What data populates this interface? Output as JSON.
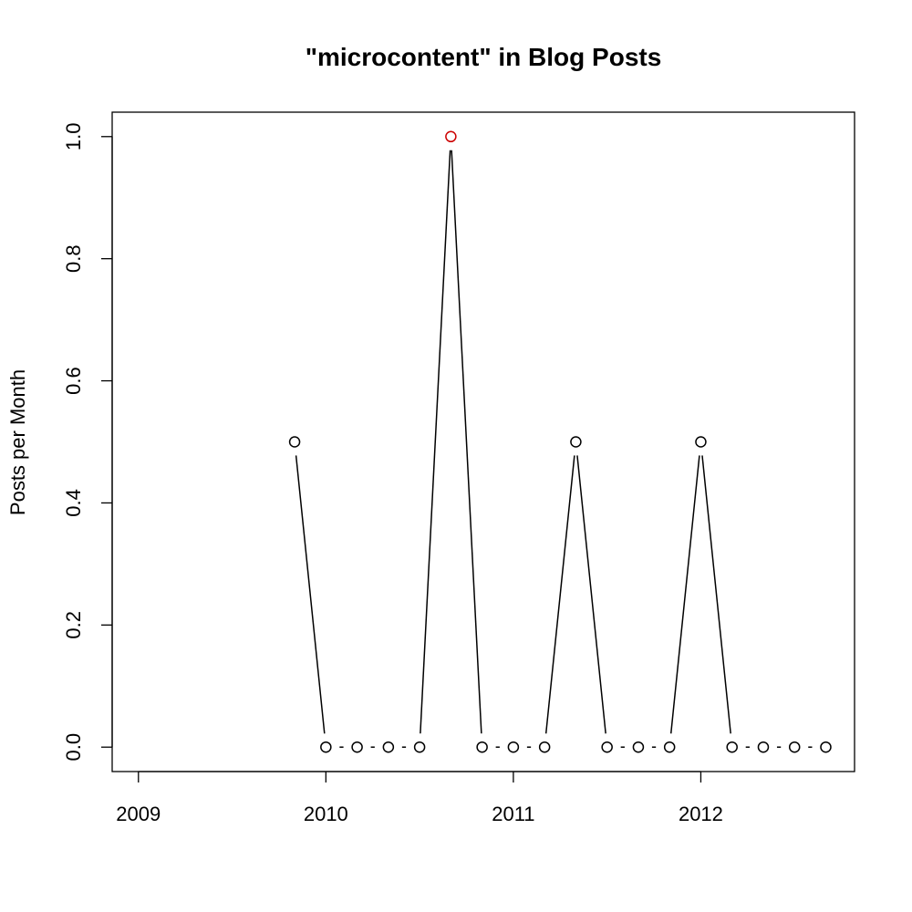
{
  "chart_data": {
    "type": "line",
    "title": "\"microcontent\" in Blog Posts",
    "xlabel": "",
    "ylabel": "Posts per Month",
    "x_ticks": [
      "2009",
      "2010",
      "2011",
      "2012"
    ],
    "y_ticks": [
      "0.0",
      "0.2",
      "0.4",
      "0.6",
      "0.8",
      "1.0"
    ],
    "xlim": [
      2008.86,
      2012.82
    ],
    "ylim": [
      -0.04,
      1.04
    ],
    "grid": false,
    "legend": "none",
    "x": [
      "2009-11",
      "2010-01",
      "2010-03",
      "2010-05",
      "2010-07",
      "2010-09",
      "2010-11",
      "2011-01",
      "2011-03",
      "2011-05",
      "2011-07",
      "2011-09",
      "2011-11",
      "2012-01",
      "2012-03",
      "2012-05",
      "2012-07",
      "2012-09"
    ],
    "values": [
      0.5,
      0,
      0,
      0,
      0,
      1.0,
      0,
      0,
      0,
      0.5,
      0,
      0,
      0,
      0.5,
      0,
      0,
      0,
      0
    ],
    "highlight_index": 5,
    "colors": {
      "line": "#000000",
      "point": "#000000",
      "highlight": "#cc0000"
    }
  }
}
